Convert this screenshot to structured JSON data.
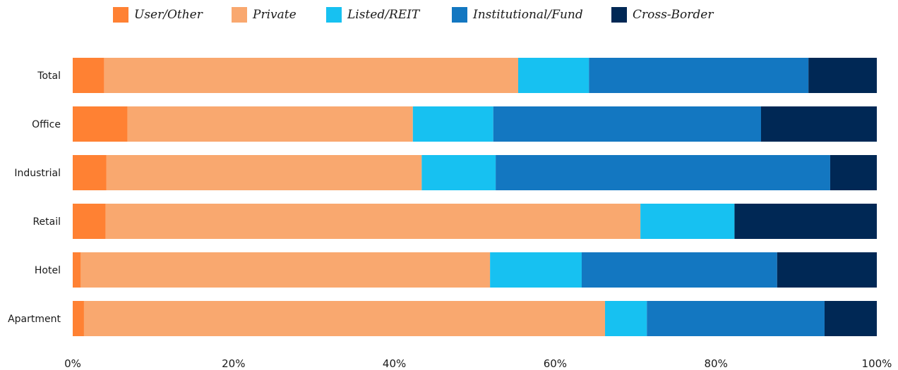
{
  "chart_data": {
    "type": "bar",
    "orientation": "horizontal",
    "stacked": true,
    "percent": true,
    "categories": [
      "Total",
      "Office",
      "Industrial",
      "Retail",
      "Hotel",
      "Apartment"
    ],
    "series": [
      {
        "name": "User/Other",
        "color": "#FF8133",
        "values": [
          3.9,
          6.8,
          4.2,
          4.1,
          1.0,
          1.4
        ]
      },
      {
        "name": "Private",
        "color": "#F9A86F",
        "values": [
          51.5,
          35.5,
          39.2,
          66.5,
          50.9,
          64.8
        ]
      },
      {
        "name": "Listed/REIT",
        "color": "#17C1F1",
        "values": [
          8.8,
          10.0,
          9.2,
          11.7,
          11.4,
          5.2
        ]
      },
      {
        "name": "Institutional/Fund",
        "color": "#1377C1",
        "values": [
          27.3,
          33.3,
          41.6,
          0.0,
          24.3,
          22.1
        ]
      },
      {
        "name": "Cross-Border",
        "color": "#002855",
        "values": [
          8.5,
          14.4,
          5.8,
          17.7,
          12.4,
          6.5
        ]
      }
    ],
    "x_ticks": [
      "0%",
      "20%",
      "40%",
      "60%",
      "80%",
      "100%"
    ],
    "xlim": [
      0,
      100
    ],
    "grid": false,
    "legend_position": "top"
  }
}
